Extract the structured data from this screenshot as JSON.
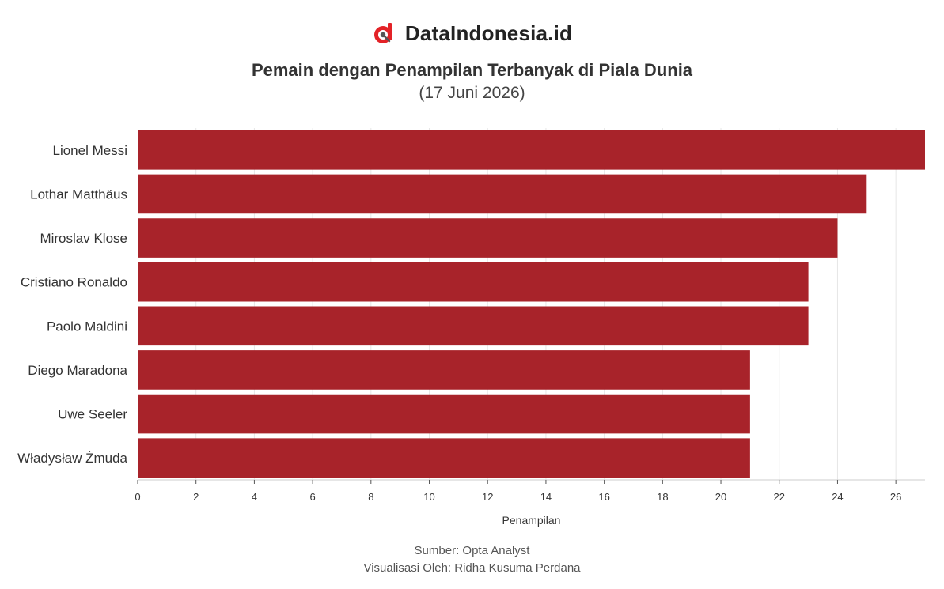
{
  "brand": {
    "name": "DataIndonesia.id",
    "logo_icon": "dataindonesia-logo-icon",
    "accent": "#e32227"
  },
  "chart_data": {
    "type": "bar",
    "orientation": "horizontal",
    "title": "Pemain dengan Penampilan Terbanyak di Piala Dunia",
    "subtitle": "(17 Juni 2026)",
    "xlabel": "Penampilan",
    "ylabel": "",
    "categories": [
      "Lionel Messi",
      "Lothar Matthäus",
      "Miroslav Klose",
      "Cristiano Ronaldo",
      "Paolo Maldini",
      "Diego Maradona",
      "Uwe Seeler",
      "Władysław Żmuda"
    ],
    "values": [
      27,
      25,
      24,
      23,
      23,
      21,
      21,
      21
    ],
    "xlim": [
      0,
      27
    ],
    "xticks": [
      0,
      2,
      4,
      6,
      8,
      10,
      12,
      14,
      16,
      18,
      20,
      22,
      24,
      26
    ],
    "grid": true,
    "bar_color": "#a8232a"
  },
  "footer": {
    "source": "Sumber: Opta Analyst",
    "credit": "Visualisasi Oleh: Ridha Kusuma Perdana"
  }
}
